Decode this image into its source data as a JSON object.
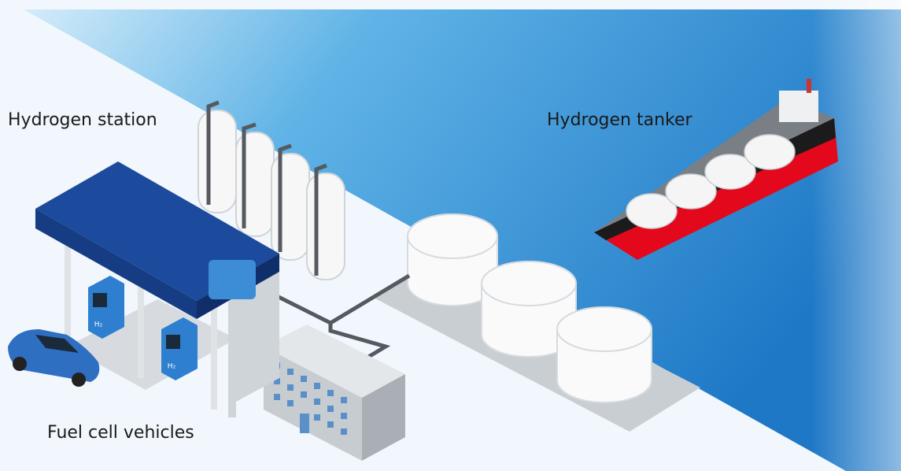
{
  "labels": {
    "station": "Hydrogen station",
    "tanker": "Hydrogen tanker",
    "vehicles": "Fuel cell vehicles"
  },
  "dispensers": [
    {
      "label": "H₂"
    },
    {
      "label": "H₂"
    }
  ]
}
